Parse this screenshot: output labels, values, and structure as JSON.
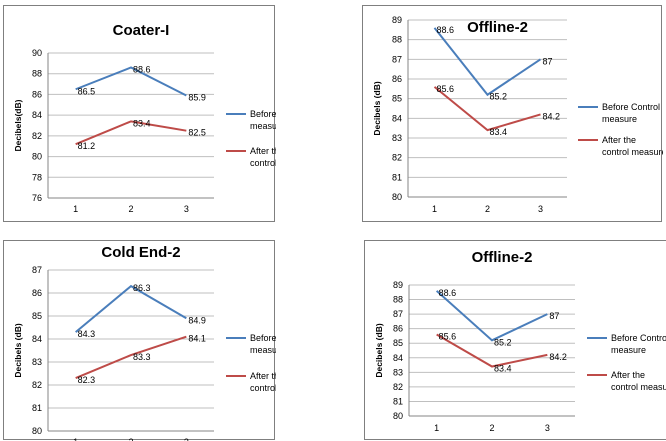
{
  "colors": {
    "before": "#4a7ebb",
    "after": "#be4b48",
    "grid": "#bfbfbf",
    "axis": "#868686",
    "text": "#000000"
  },
  "chart_data": [
    {
      "type": "line",
      "title": "Coater-I",
      "ylabel": "Decibels(dB)",
      "xlabel": "",
      "categories": [
        "1",
        "2",
        "3"
      ],
      "ylim": [
        76,
        90
      ],
      "ystep": 2,
      "grid": true,
      "legend": "right",
      "series": [
        {
          "name": "Before Control measure",
          "values": [
            86.5,
            88.6,
            85.9
          ],
          "labels": [
            "86.5",
            "88.6",
            "85.9"
          ]
        },
        {
          "name": "After the control measure",
          "values": [
            81.2,
            83.4,
            82.5
          ],
          "labels": [
            "81.2",
            "83.4",
            "82.5"
          ]
        }
      ]
    },
    {
      "type": "line",
      "title": "Offline-2",
      "ylabel": "Decibels (dB)",
      "xlabel": "",
      "categories": [
        "1",
        "2",
        "3"
      ],
      "ylim": [
        80,
        89
      ],
      "ystep": 1,
      "grid": true,
      "legend": "right",
      "series": [
        {
          "name": "Before Control measure",
          "values": [
            88.6,
            85.2,
            87
          ],
          "labels": [
            "88.6",
            "85.2",
            "87"
          ]
        },
        {
          "name": "After the control measure",
          "values": [
            85.6,
            83.4,
            84.2
          ],
          "labels": [
            "85.6",
            "83.4",
            "84.2"
          ]
        }
      ]
    },
    {
      "type": "line",
      "title": "Cold End-2",
      "ylabel": "Decibels (dB)",
      "xlabel": "",
      "categories": [
        "1",
        "2",
        "3"
      ],
      "ylim": [
        80,
        87
      ],
      "ystep": 1,
      "grid": true,
      "legend": "right",
      "series": [
        {
          "name": "Before Control measure",
          "values": [
            84.3,
            86.3,
            84.9
          ],
          "labels": [
            "84.3",
            "86.3",
            "84.9"
          ]
        },
        {
          "name": "After the control measure",
          "values": [
            82.3,
            83.3,
            84.1
          ],
          "labels": [
            "82.3",
            "83.3",
            "84.1"
          ]
        }
      ]
    },
    {
      "type": "line",
      "title": "Offline-2",
      "ylabel": "Decibels (dB)",
      "xlabel": "",
      "categories": [
        "1",
        "2",
        "3"
      ],
      "ylim": [
        80,
        89
      ],
      "ystep": 1,
      "grid": true,
      "legend": "right",
      "series": [
        {
          "name": "Before Control measure",
          "values": [
            88.6,
            85.2,
            87
          ],
          "labels": [
            "88.6",
            "85.2",
            "87"
          ]
        },
        {
          "name": "After the control measure",
          "values": [
            85.6,
            83.4,
            84.2
          ],
          "labels": [
            "85.6",
            "83.4",
            "84.2"
          ]
        }
      ]
    }
  ]
}
